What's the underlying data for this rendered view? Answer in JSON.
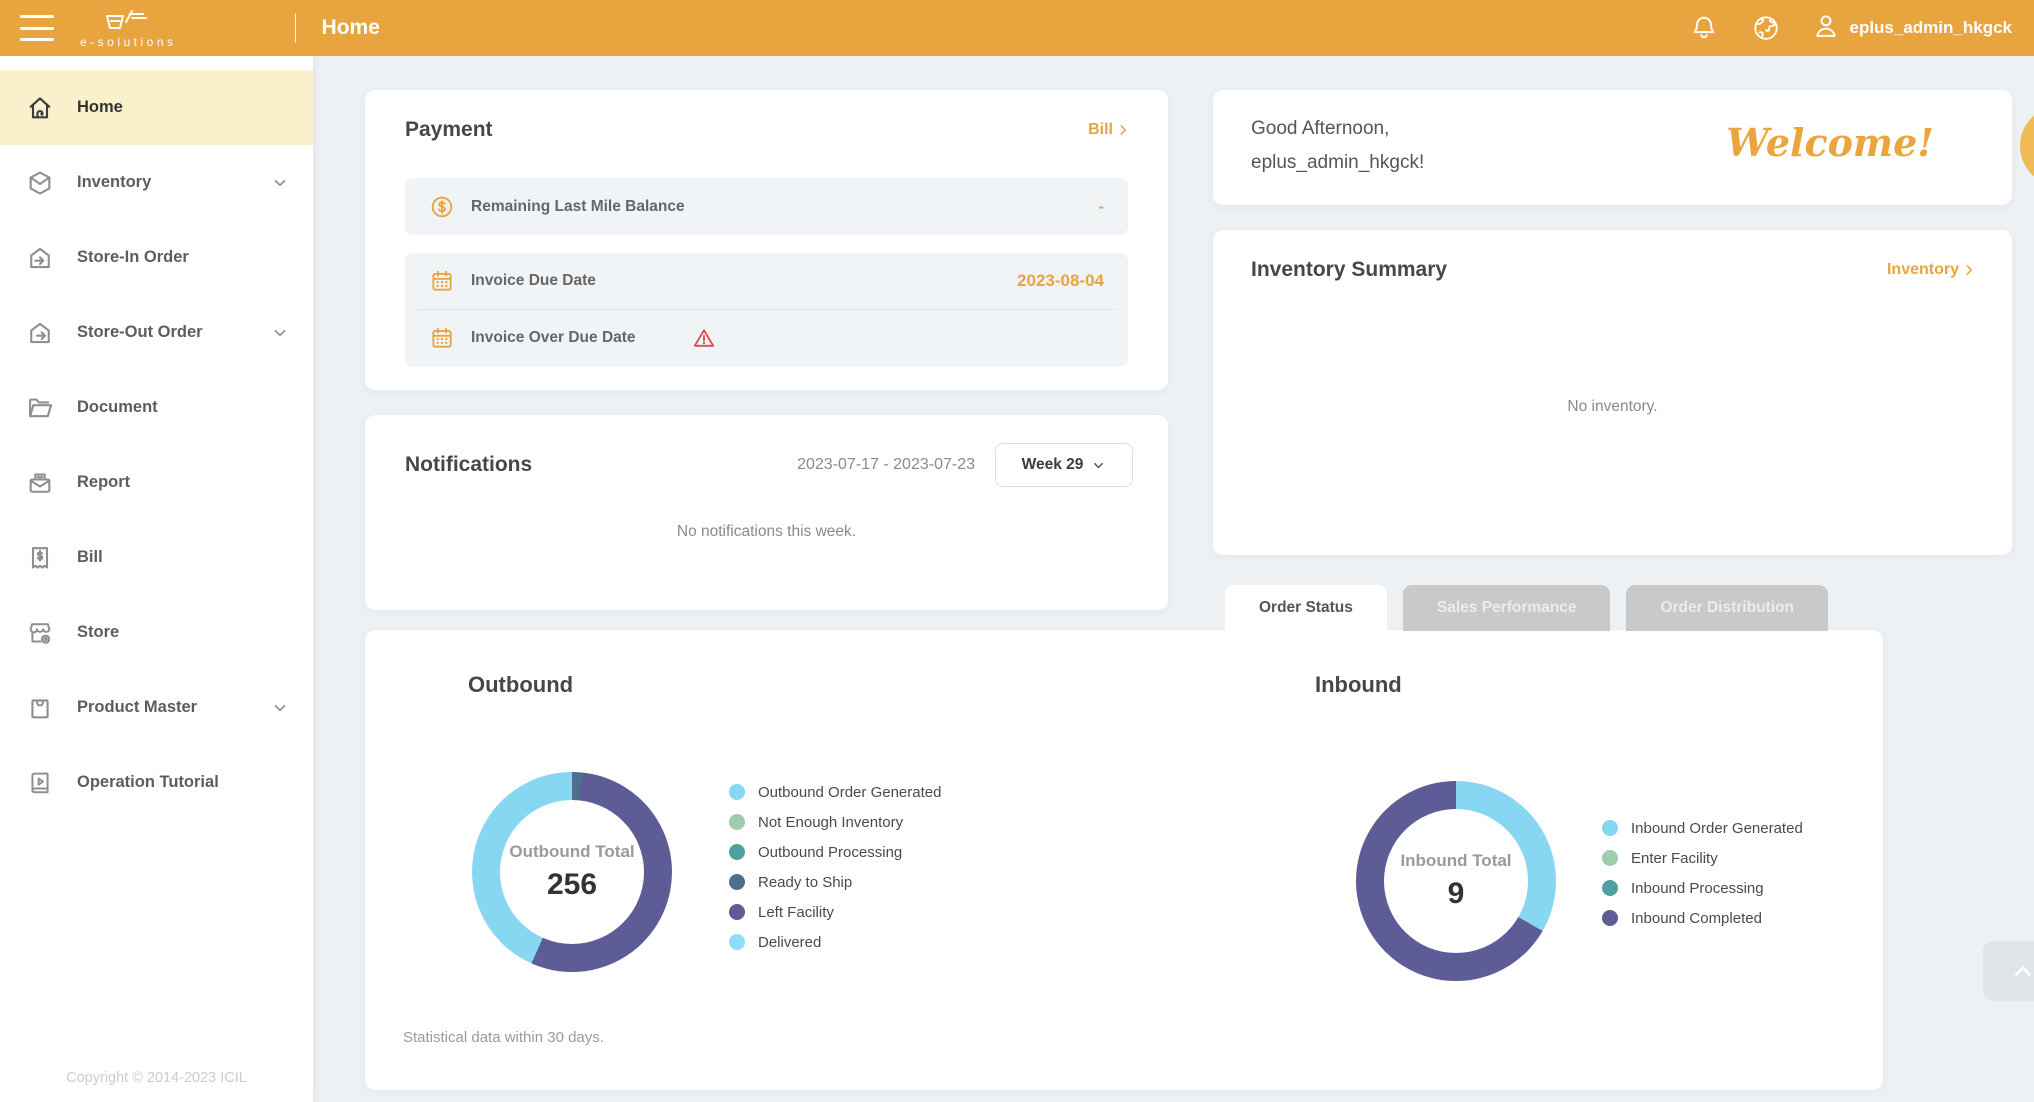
{
  "header": {
    "brand": "e-solutions",
    "title": "Home",
    "username": "eplus_admin_hkgck",
    "icons": [
      "menu-icon",
      "cart-logo-icon",
      "bell-icon",
      "globe-icon",
      "user-icon"
    ]
  },
  "sidebar": {
    "items": [
      {
        "label": "Home",
        "icon": "home",
        "active": true,
        "expandable": false
      },
      {
        "label": "Inventory",
        "icon": "inventory-box",
        "active": false,
        "expandable": true
      },
      {
        "label": "Store-In Order",
        "icon": "store-in",
        "active": false,
        "expandable": false
      },
      {
        "label": "Store-Out Order",
        "icon": "store-out",
        "active": false,
        "expandable": true
      },
      {
        "label": "Document",
        "icon": "document-folder",
        "active": false,
        "expandable": false
      },
      {
        "label": "Report",
        "icon": "report-mail",
        "active": false,
        "expandable": false
      },
      {
        "label": "Bill",
        "icon": "bill-receipt",
        "active": false,
        "expandable": false
      },
      {
        "label": "Store",
        "icon": "store-front",
        "active": false,
        "expandable": false
      },
      {
        "label": "Product Master",
        "icon": "product-bag",
        "active": false,
        "expandable": true
      },
      {
        "label": "Operation Tutorial",
        "icon": "tutorial-book",
        "active": false,
        "expandable": false
      }
    ],
    "copyright": "Copyright © 2014-2023 ICIL"
  },
  "payment": {
    "title": "Payment",
    "link_label": "Bill",
    "rows": [
      {
        "icon": "coin-dollar",
        "label": "Remaining Last Mile Balance",
        "value": "-"
      },
      {
        "icon": "calendar",
        "label": "Invoice Due Date",
        "value": "2023-08-04"
      },
      {
        "icon": "calendar",
        "label": "Invoice Over Due Date",
        "value": "",
        "warning": true
      }
    ]
  },
  "notifications": {
    "title": "Notifications",
    "date_range": "2023-07-17 - 2023-07-23",
    "week_selector": "Week 29",
    "empty_message": "No notifications this week."
  },
  "welcome": {
    "greeting_line1": "Good Afternoon,",
    "greeting_line2": "eplus_admin_hkgck!",
    "welcome_text": "Welcome!"
  },
  "inventory_summary": {
    "title": "Inventory Summary",
    "link_label": "Inventory",
    "empty_message": "No inventory."
  },
  "tabs": [
    {
      "label": "Order Status",
      "active": true
    },
    {
      "label": "Sales Performance",
      "active": false
    },
    {
      "label": "Order Distribution",
      "active": false
    }
  ],
  "chart_data": [
    {
      "type": "pie",
      "title": "Outbound",
      "center_label": "Outbound Total",
      "total": 256,
      "legend_position": "right",
      "draw_order": [
        3,
        4,
        0
      ],
      "series": [
        {
          "name": "Outbound Order Generated",
          "value": 111,
          "color": "#87D7F3"
        },
        {
          "name": "Not Enough Inventory",
          "value": 0,
          "color": "#9FCCAB"
        },
        {
          "name": "Outbound Processing",
          "value": 0,
          "color": "#4FA1A1"
        },
        {
          "name": "Ready to Ship",
          "value": 4,
          "color": "#4D6F8C"
        },
        {
          "name": "Left Facility",
          "value": 141,
          "color": "#5D5C96"
        },
        {
          "name": "Delivered",
          "value": 0,
          "color": "#8FDCF8"
        }
      ]
    },
    {
      "type": "pie",
      "title": "Inbound",
      "center_label": "Inbound Total",
      "total": 9,
      "legend_position": "right",
      "draw_order": [
        0,
        3
      ],
      "series": [
        {
          "name": "Inbound Order Generated",
          "value": 3,
          "color": "#87D7F3"
        },
        {
          "name": "Enter Facility",
          "value": 0,
          "color": "#9FCCAB"
        },
        {
          "name": "Inbound Processing",
          "value": 0,
          "color": "#4FA1A1"
        },
        {
          "name": "Inbound Completed",
          "value": 6,
          "color": "#5D5C96"
        }
      ]
    }
  ],
  "chart_footnote": "Statistical data within 30 days.",
  "colors": {
    "header": "#E8A43E",
    "accent": "#E8A43E",
    "active_item_bg": "#FBF0CC",
    "page_bg": "#EDF1F4",
    "warning": "#E0484C",
    "tab_inactive_bg": "#C9C9C9"
  }
}
